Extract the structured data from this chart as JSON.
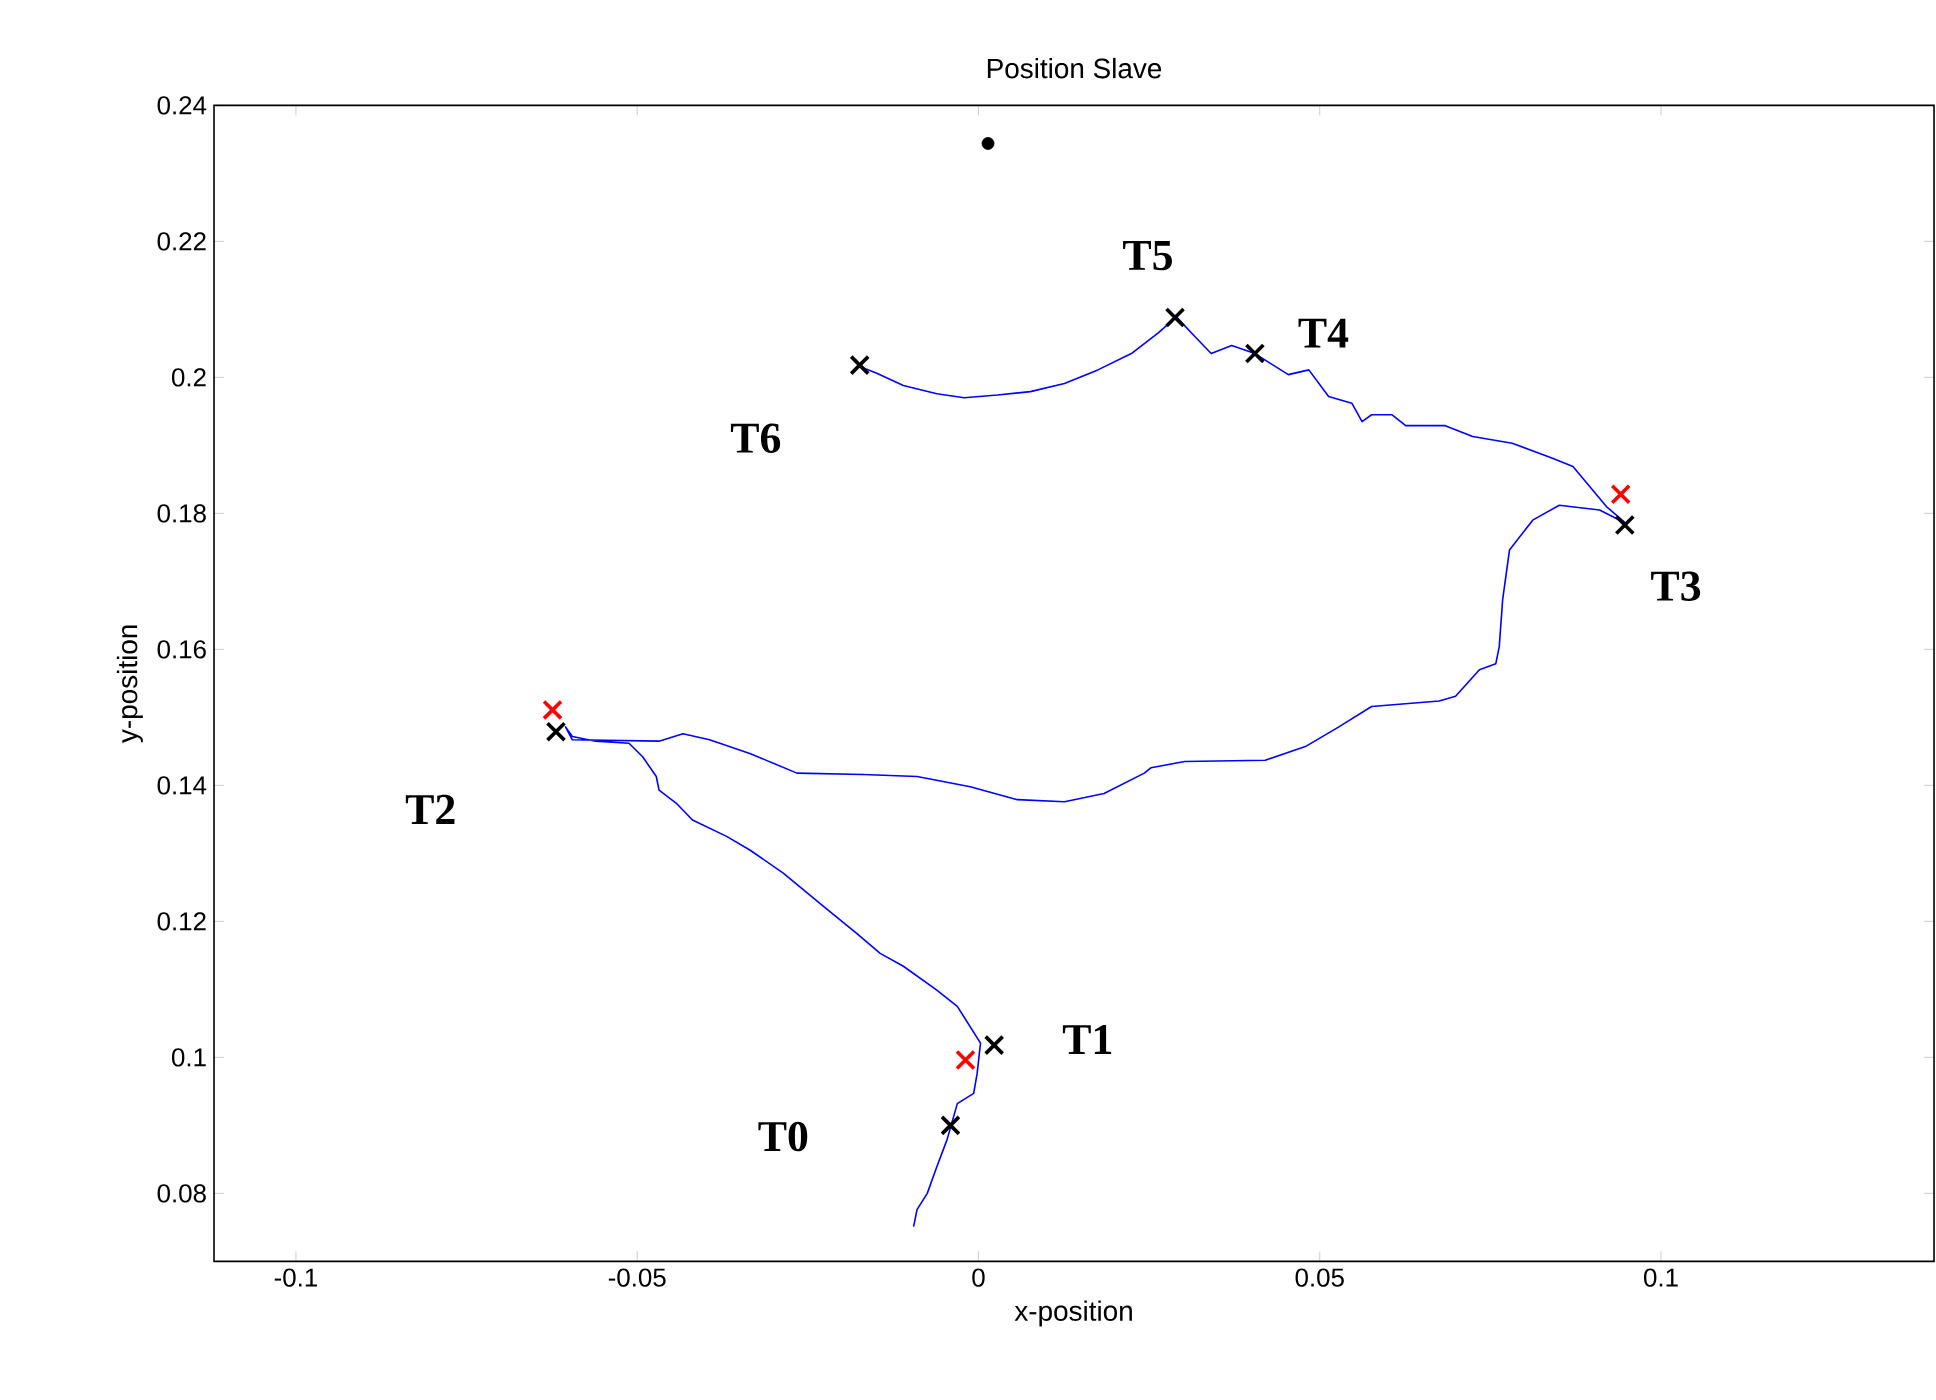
{
  "chart_data": {
    "type": "line",
    "title": "Position Slave",
    "xlabel": "x-position",
    "ylabel": "y-position",
    "xlim": [
      -0.112,
      0.14
    ],
    "ylim": [
      0.07,
      0.24
    ],
    "xticks": [
      -0.1,
      -0.05,
      0,
      0.05,
      0.1
    ],
    "yticks": [
      0.08,
      0.1,
      0.12,
      0.14,
      0.16,
      0.18,
      0.2,
      0.22,
      0.24
    ],
    "grid": false,
    "series": [
      {
        "color": "#0000ff",
        "marker": "none",
        "x": [
          -0.0095,
          -0.009,
          -0.0075,
          -0.0061,
          -0.0046,
          -0.0031,
          -0.0007,
          -0.0002,
          0.0003,
          -0.0031,
          -0.0061,
          -0.011,
          -0.0144,
          -0.0178,
          -0.0227,
          -0.0286,
          -0.0335,
          -0.0369,
          -0.0419,
          -0.0443,
          -0.0468,
          -0.0472,
          -0.0492,
          -0.0512,
          -0.0561,
          -0.0595,
          -0.0605,
          -0.0595,
          -0.0468,
          -0.0433,
          -0.0394,
          -0.0335,
          -0.0266,
          -0.0169,
          -0.009,
          -0.0012,
          0.0057,
          0.0126,
          0.0184,
          0.0243,
          0.0253,
          0.0302,
          0.042,
          0.0479,
          0.0528,
          0.0576,
          0.0675,
          0.0699,
          0.0734,
          0.0758,
          0.0763,
          0.0768,
          0.0778,
          0.0812,
          0.0851,
          0.091,
          0.0949,
          0.092,
          0.0871,
          0.0841,
          0.0782,
          0.0724,
          0.0684,
          0.0626,
          0.0606,
          0.0576,
          0.0562,
          0.0547,
          0.0513,
          0.0484,
          0.0454,
          0.0405,
          0.0371,
          0.0341,
          0.0317,
          0.029,
          0.0263,
          0.0224,
          0.0175,
          0.0126,
          0.0076,
          0.0028,
          -0.0021,
          -0.0061,
          -0.011,
          -0.0149,
          -0.0174
        ],
        "values": [
          0.0751,
          0.0776,
          0.08,
          0.0839,
          0.0879,
          0.0932,
          0.0947,
          0.0976,
          0.1021,
          0.1075,
          0.1099,
          0.1134,
          0.1153,
          0.1182,
          0.1222,
          0.1271,
          0.1305,
          0.1325,
          0.1349,
          0.1374,
          0.1393,
          0.1413,
          0.1442,
          0.1462,
          0.1465,
          0.1472,
          0.1486,
          0.1467,
          0.1465,
          0.1476,
          0.1467,
          0.1447,
          0.1418,
          0.1416,
          0.1413,
          0.1398,
          0.1379,
          0.1376,
          0.1388,
          0.1418,
          0.1426,
          0.1435,
          0.1437,
          0.1457,
          0.1486,
          0.1516,
          0.1524,
          0.1531,
          0.157,
          0.1579,
          0.1604,
          0.1673,
          0.1746,
          0.179,
          0.1812,
          0.1805,
          0.1785,
          0.181,
          0.1869,
          0.1881,
          0.1903,
          0.1913,
          0.1929,
          0.1929,
          0.1945,
          0.1945,
          0.1935,
          0.1962,
          0.1972,
          0.2011,
          0.2004,
          0.2035,
          0.2047,
          0.2035,
          0.206,
          0.2089,
          0.2065,
          0.2035,
          0.2011,
          0.1991,
          0.1979,
          0.1974,
          0.197,
          0.1976,
          0.1988,
          0.2006,
          0.2016
        ]
      },
      {
        "type": "scatter",
        "color": "#000000",
        "marker": "cross",
        "x": [
          -0.0041,
          0.0023,
          -0.0619,
          0.0947,
          0.0405,
          0.0288,
          -0.0174
        ],
        "values": [
          0.09,
          0.1018,
          0.1479,
          0.1783,
          0.2035,
          0.2088,
          0.2018
        ]
      },
      {
        "type": "scatter",
        "color": "#ff0000",
        "marker": "cross",
        "x": [
          -0.0019,
          -0.0624,
          0.0941
        ],
        "values": [
          0.0996,
          0.1511,
          0.1828
        ]
      },
      {
        "type": "scatter",
        "color": "#000000",
        "marker": "circle",
        "x": [
          0.0014
        ],
        "values": [
          0.2344
        ]
      }
    ],
    "annotations": [
      "T0",
      "T1",
      "T2",
      "T3",
      "T4",
      "T5",
      "T6"
    ]
  }
}
